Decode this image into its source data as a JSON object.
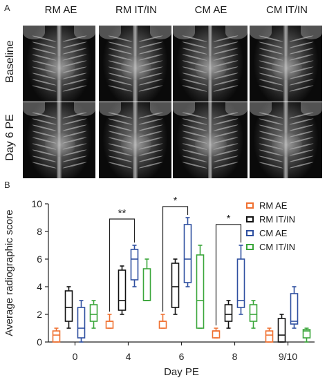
{
  "panel_a": {
    "letter": "A",
    "columns": [
      "RM AE",
      "RM IT/IN",
      "CM AE",
      "CM IT/IN"
    ],
    "rows": [
      "Baseline",
      "Day 6 PE"
    ]
  },
  "panel_b": {
    "letter": "B"
  },
  "chart_data": {
    "type": "box",
    "xlabel": "Day PE",
    "ylabel": "Average radiographic score",
    "categories": [
      "0",
      "4",
      "6",
      "8",
      "9/10"
    ],
    "ylim": [
      0,
      10
    ],
    "yticks": [
      0,
      2,
      4,
      6,
      8,
      10
    ],
    "legend_position": "top-right",
    "series": [
      {
        "name": "RM AE",
        "color": "#f07030",
        "boxes": [
          {
            "min": 0,
            "q1": 0,
            "median": 0.5,
            "q3": 0.8,
            "max": 1
          },
          {
            "min": 1,
            "q1": 1,
            "median": 1.5,
            "q3": 1.5,
            "max": 2
          },
          {
            "min": 1,
            "q1": 1,
            "median": 1.5,
            "q3": 1.5,
            "max": 2
          },
          {
            "min": 0.3,
            "q1": 0.3,
            "median": 0.8,
            "q3": 0.8,
            "max": 1
          },
          {
            "min": 0,
            "q1": 0,
            "median": 0.5,
            "q3": 0.8,
            "max": 1
          }
        ]
      },
      {
        "name": "RM IT/IN",
        "color": "#111111",
        "boxes": [
          {
            "min": 1,
            "q1": 1.5,
            "median": 2.5,
            "q3": 3.7,
            "max": 4
          },
          {
            "min": 2,
            "q1": 2.3,
            "median": 3,
            "q3": 5.2,
            "max": 5.5
          },
          {
            "min": 2,
            "q1": 2.5,
            "median": 4,
            "q3": 5.7,
            "max": 6
          },
          {
            "min": 1,
            "q1": 1.5,
            "median": 2,
            "q3": 2.7,
            "max": 3
          },
          {
            "min": 0,
            "q1": 0,
            "median": 0.5,
            "q3": 1.7,
            "max": 2
          }
        ]
      },
      {
        "name": "CM AE",
        "color": "#2e4fa0",
        "boxes": [
          {
            "min": 0,
            "q1": 0.3,
            "median": 1,
            "q3": 2.5,
            "max": 3
          },
          {
            "min": 4,
            "q1": 4.5,
            "median": 6,
            "q3": 6.7,
            "max": 7
          },
          {
            "min": 4,
            "q1": 4.3,
            "median": 6,
            "q3": 8.5,
            "max": 9
          },
          {
            "min": 2,
            "q1": 2.5,
            "median": 3,
            "q3": 6,
            "max": 7
          },
          {
            "min": 1,
            "q1": 1.3,
            "median": 1.5,
            "q3": 3.5,
            "max": 4
          }
        ]
      },
      {
        "name": "CM IT/IN",
        "color": "#3aa63a",
        "boxes": [
          {
            "min": 1,
            "q1": 1.5,
            "median": 2,
            "q3": 2.7,
            "max": 3
          },
          {
            "min": 3,
            "q1": 3,
            "median": 3,
            "q3": 5.3,
            "max": 6
          },
          {
            "min": 1,
            "q1": 1,
            "median": 3,
            "q3": 6.3,
            "max": 7
          },
          {
            "min": 1,
            "q1": 1.5,
            "median": 2,
            "q3": 2.7,
            "max": 3
          },
          {
            "min": 0,
            "q1": 0.3,
            "median": 0.8,
            "q3": 0.9,
            "max": 1
          }
        ]
      }
    ],
    "significance": [
      {
        "label": "**",
        "category": "4",
        "from_series": "RM AE",
        "to_series": "CM AE",
        "level": 8.9
      },
      {
        "label": "*",
        "category": "6",
        "from_series": "RM AE",
        "to_series": "CM AE",
        "level": 9.8
      },
      {
        "label": "*",
        "category": "8",
        "from_series": "RM AE",
        "to_series": "CM AE",
        "level": 8.5
      }
    ]
  }
}
